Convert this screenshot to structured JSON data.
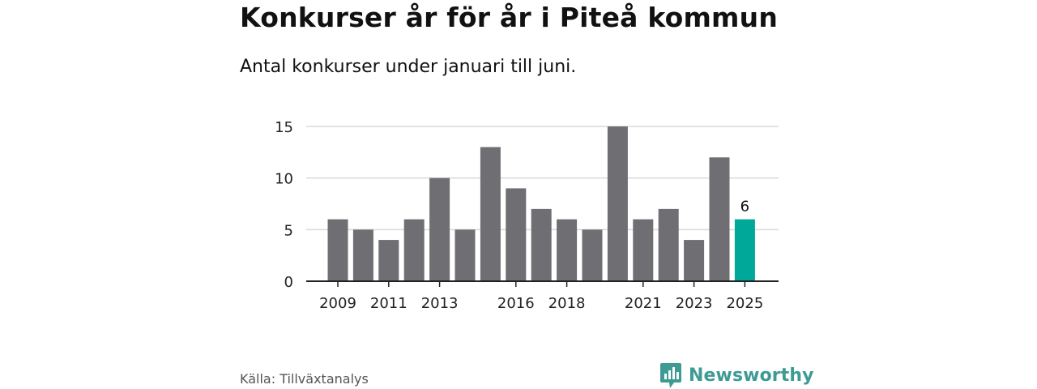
{
  "header": {
    "title": "Konkurser år för år i Piteå kommun",
    "subtitle": "Antal konkurser under januari till juni."
  },
  "footer": {
    "source": "Källa: Tillväxtanalys",
    "brand": "Newsworthy",
    "brand_icon": "newsworthy-bar-chart-logo-icon"
  },
  "colors": {
    "bar": "#6f6e73",
    "highlight": "#00a89a",
    "grid": "#d9d9d9",
    "axis": "#222222",
    "brand": "#3d9b94"
  },
  "chart_data": {
    "type": "bar",
    "title": "Konkurser år för år i Piteå kommun",
    "subtitle": "Antal konkurser under januari till juni.",
    "xlabel": "",
    "ylabel": "",
    "categories": [
      "2009",
      "2010",
      "2011",
      "2012",
      "2013",
      "2014",
      "2015",
      "2016",
      "2017",
      "2018",
      "2019",
      "2020",
      "2021",
      "2022",
      "2023",
      "2024",
      "2025"
    ],
    "values": [
      6,
      5,
      4,
      6,
      10,
      5,
      13,
      9,
      7,
      6,
      5,
      15,
      6,
      7,
      4,
      12,
      6
    ],
    "x_tick_labels": [
      "2009",
      "2011",
      "2013",
      "2016",
      "2018",
      "2021",
      "2023",
      "2025"
    ],
    "y_ticks": [
      0,
      5,
      10,
      15
    ],
    "ylim": [
      0,
      15
    ],
    "grid": true,
    "highlight": {
      "category": "2025",
      "label": "6"
    }
  }
}
